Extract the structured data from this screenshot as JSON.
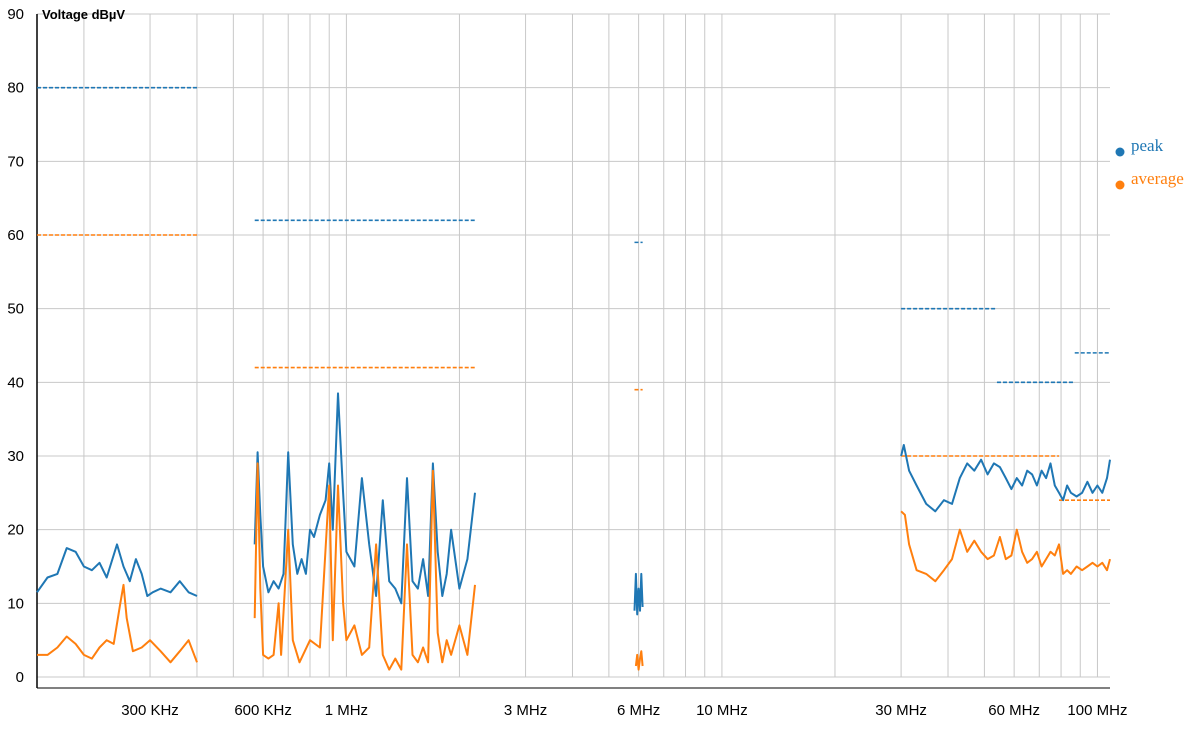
{
  "chart_data": {
    "type": "line",
    "ylabel": "Voltage dBµV",
    "ylim": [
      0,
      90
    ],
    "y_ticks": [
      0,
      10,
      20,
      30,
      40,
      50,
      60,
      70,
      80,
      90
    ],
    "x_scale": "log",
    "x_unit": "Hz",
    "xlim": [
      150000,
      108000000
    ],
    "x_tick_labels": [
      {
        "value": 300000,
        "label": "300 KHz"
      },
      {
        "value": 600000,
        "label": "600 KHz"
      },
      {
        "value": 1000000,
        "label": "1 MHz"
      },
      {
        "value": 3000000,
        "label": "3 MHz"
      },
      {
        "value": 6000000,
        "label": "6 MHz"
      },
      {
        "value": 10000000,
        "label": "10 MHz"
      },
      {
        "value": 30000000,
        "label": "30 MHz"
      },
      {
        "value": 60000000,
        "label": "60 MHz"
      },
      {
        "value": 100000000,
        "label": "100 MHz"
      }
    ],
    "grid": true,
    "legend_position": "right",
    "colors": {
      "peak": "#1f77b4",
      "average": "#ff7f0e"
    },
    "series": [
      {
        "name": "peak",
        "color": "#1f77b4",
        "segments": [
          [
            [
              150000,
              11.5
            ],
            [
              160000,
              13.5
            ],
            [
              170000,
              14
            ],
            [
              180000,
              17.5
            ],
            [
              190000,
              17
            ],
            [
              200000,
              15
            ],
            [
              210000,
              14.5
            ],
            [
              220000,
              15.5
            ],
            [
              230000,
              13.5
            ],
            [
              245000,
              18
            ],
            [
              255000,
              15
            ],
            [
              265000,
              13
            ],
            [
              275000,
              16
            ],
            [
              285000,
              14
            ],
            [
              295000,
              11
            ],
            [
              305000,
              11.5
            ],
            [
              320000,
              12
            ],
            [
              340000,
              11.5
            ],
            [
              360000,
              13
            ],
            [
              380000,
              11.5
            ],
            [
              400000,
              11
            ]
          ],
          [
            [
              570000,
              18
            ],
            [
              580000,
              30.5
            ],
            [
              590000,
              22
            ],
            [
              600000,
              15
            ],
            [
              620000,
              11.5
            ],
            [
              640000,
              13
            ],
            [
              660000,
              12
            ],
            [
              680000,
              14
            ],
            [
              700000,
              30.5
            ],
            [
              720000,
              18
            ],
            [
              740000,
              14
            ],
            [
              760000,
              16
            ],
            [
              780000,
              14
            ],
            [
              800000,
              20
            ],
            [
              820000,
              19
            ],
            [
              850000,
              22
            ],
            [
              880000,
              24
            ],
            [
              900000,
              29
            ],
            [
              920000,
              20
            ],
            [
              950000,
              38.5
            ],
            [
              980000,
              25
            ],
            [
              1000000,
              17
            ],
            [
              1050000,
              15
            ],
            [
              1100000,
              27
            ],
            [
              1150000,
              18
            ],
            [
              1200000,
              11
            ],
            [
              1250000,
              24
            ],
            [
              1300000,
              13
            ],
            [
              1350000,
              12
            ],
            [
              1400000,
              10
            ],
            [
              1450000,
              27
            ],
            [
              1500000,
              13
            ],
            [
              1550000,
              12
            ],
            [
              1600000,
              16
            ],
            [
              1650000,
              11
            ],
            [
              1700000,
              29
            ],
            [
              1750000,
              17
            ],
            [
              1800000,
              11
            ],
            [
              1850000,
              14
            ],
            [
              1900000,
              20
            ],
            [
              2000000,
              12
            ],
            [
              2100000,
              16
            ],
            [
              2200000,
              25
            ]
          ],
          [
            [
              5850000,
              9
            ],
            [
              5900000,
              14
            ],
            [
              5950000,
              8.5
            ],
            [
              6000000,
              12
            ],
            [
              6050000,
              9
            ],
            [
              6100000,
              14
            ],
            [
              6150000,
              9.5
            ]
          ],
          [
            [
              30000000,
              30
            ],
            [
              30500000,
              31.5
            ],
            [
              31500000,
              28
            ],
            [
              33000000,
              26
            ],
            [
              35000000,
              23.5
            ],
            [
              37000000,
              22.5
            ],
            [
              39000000,
              24
            ],
            [
              41000000,
              23.5
            ],
            [
              43000000,
              27
            ],
            [
              45000000,
              29
            ],
            [
              47000000,
              28
            ],
            [
              49000000,
              29.5
            ],
            [
              51000000,
              27.5
            ],
            [
              53000000,
              29
            ],
            [
              55000000,
              28.5
            ],
            [
              57000000,
              27
            ],
            [
              59000000,
              25.5
            ],
            [
              61000000,
              27
            ],
            [
              63000000,
              26
            ],
            [
              65000000,
              28
            ],
            [
              67000000,
              27.5
            ],
            [
              69000000,
              26
            ],
            [
              71000000,
              28
            ],
            [
              73000000,
              27
            ],
            [
              75000000,
              29
            ],
            [
              77000000,
              26
            ],
            [
              79000000,
              25
            ],
            [
              81000000,
              24
            ],
            [
              83000000,
              26
            ],
            [
              85000000,
              25
            ],
            [
              88000000,
              24.5
            ],
            [
              91000000,
              25
            ],
            [
              94000000,
              26.5
            ],
            [
              97000000,
              25
            ],
            [
              100000000,
              26
            ],
            [
              103000000,
              25
            ],
            [
              106000000,
              27
            ],
            [
              108000000,
              29.5
            ]
          ]
        ]
      },
      {
        "name": "average",
        "color": "#ff7f0e",
        "segments": [
          [
            [
              150000,
              3
            ],
            [
              160000,
              3
            ],
            [
              170000,
              4
            ],
            [
              180000,
              5.5
            ],
            [
              190000,
              4.5
            ],
            [
              200000,
              3
            ],
            [
              210000,
              2.5
            ],
            [
              220000,
              4
            ],
            [
              230000,
              5
            ],
            [
              240000,
              4.5
            ],
            [
              250000,
              10
            ],
            [
              255000,
              12.5
            ],
            [
              260000,
              8
            ],
            [
              270000,
              3.5
            ],
            [
              285000,
              4
            ],
            [
              300000,
              5
            ],
            [
              320000,
              3.5
            ],
            [
              340000,
              2
            ],
            [
              360000,
              3.5
            ],
            [
              380000,
              5
            ],
            [
              400000,
              2
            ]
          ],
          [
            [
              570000,
              8
            ],
            [
              580000,
              29
            ],
            [
              590000,
              12
            ],
            [
              600000,
              3
            ],
            [
              620000,
              2.5
            ],
            [
              640000,
              3
            ],
            [
              660000,
              10
            ],
            [
              670000,
              3
            ],
            [
              700000,
              20
            ],
            [
              720000,
              5
            ],
            [
              750000,
              2
            ],
            [
              800000,
              5
            ],
            [
              850000,
              4
            ],
            [
              900000,
              26
            ],
            [
              920000,
              5
            ],
            [
              950000,
              26
            ],
            [
              980000,
              10
            ],
            [
              1000000,
              5
            ],
            [
              1050000,
              7
            ],
            [
              1100000,
              3
            ],
            [
              1150000,
              4
            ],
            [
              1200000,
              18
            ],
            [
              1250000,
              3
            ],
            [
              1300000,
              1
            ],
            [
              1350000,
              2.5
            ],
            [
              1400000,
              1
            ],
            [
              1450000,
              18
            ],
            [
              1500000,
              3
            ],
            [
              1550000,
              2
            ],
            [
              1600000,
              4
            ],
            [
              1650000,
              2
            ],
            [
              1700000,
              28
            ],
            [
              1750000,
              6
            ],
            [
              1800000,
              2
            ],
            [
              1850000,
              5
            ],
            [
              1900000,
              3
            ],
            [
              2000000,
              7
            ],
            [
              2100000,
              3
            ],
            [
              2200000,
              12.5
            ]
          ],
          [
            [
              5900000,
              1.5
            ],
            [
              5950000,
              3
            ],
            [
              6000000,
              1
            ],
            [
              6050000,
              2.5
            ],
            [
              6100000,
              3.5
            ],
            [
              6150000,
              1.5
            ]
          ],
          [
            [
              30000000,
              22.5
            ],
            [
              30700000,
              22
            ],
            [
              31500000,
              18
            ],
            [
              33000000,
              14.5
            ],
            [
              35000000,
              14
            ],
            [
              37000000,
              13
            ],
            [
              39000000,
              14.5
            ],
            [
              41000000,
              16
            ],
            [
              43000000,
              20
            ],
            [
              45000000,
              17
            ],
            [
              47000000,
              18.5
            ],
            [
              49000000,
              17
            ],
            [
              51000000,
              16
            ],
            [
              53000000,
              16.5
            ],
            [
              55000000,
              19
            ],
            [
              57000000,
              16
            ],
            [
              59000000,
              16.5
            ],
            [
              61000000,
              20
            ],
            [
              63000000,
              17
            ],
            [
              65000000,
              15.5
            ],
            [
              67000000,
              16
            ],
            [
              69000000,
              17
            ],
            [
              71000000,
              15
            ],
            [
              73000000,
              16
            ],
            [
              75000000,
              17
            ],
            [
              77000000,
              16.5
            ],
            [
              79000000,
              18
            ],
            [
              81000000,
              14
            ],
            [
              83000000,
              14.5
            ],
            [
              85000000,
              14
            ],
            [
              88000000,
              15
            ],
            [
              91000000,
              14.5
            ],
            [
              94000000,
              15
            ],
            [
              97000000,
              15.5
            ],
            [
              100000000,
              15
            ],
            [
              103000000,
              15.5
            ],
            [
              106000000,
              14.5
            ],
            [
              108000000,
              16
            ]
          ]
        ]
      }
    ],
    "limit_lines": [
      {
        "series": "peak",
        "x0": 150000,
        "x1": 400000,
        "y": 80
      },
      {
        "series": "average",
        "x0": 150000,
        "x1": 400000,
        "y": 60
      },
      {
        "series": "peak",
        "x0": 570000,
        "x1": 2200000,
        "y": 62
      },
      {
        "series": "average",
        "x0": 570000,
        "x1": 2200000,
        "y": 42
      },
      {
        "series": "peak",
        "x0": 5850000,
        "x1": 6150000,
        "y": 59
      },
      {
        "series": "average",
        "x0": 5850000,
        "x1": 6150000,
        "y": 39
      },
      {
        "series": "peak",
        "x0": 30000000,
        "x1": 54000000,
        "y": 50
      },
      {
        "series": "peak",
        "x0": 54000000,
        "x1": 87000000,
        "y": 40
      },
      {
        "series": "peak",
        "x0": 87000000,
        "x1": 108000000,
        "y": 44
      },
      {
        "series": "average",
        "x0": 30000000,
        "x1": 79000000,
        "y": 30
      },
      {
        "series": "average",
        "x0": 79000000,
        "x1": 108000000,
        "y": 24
      }
    ]
  }
}
